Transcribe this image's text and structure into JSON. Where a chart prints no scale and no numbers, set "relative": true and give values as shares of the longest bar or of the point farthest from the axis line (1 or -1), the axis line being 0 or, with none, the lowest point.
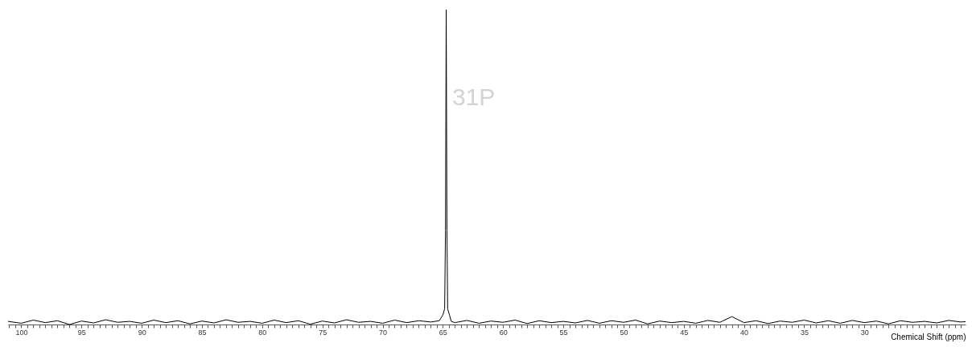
{
  "chart_data": {
    "type": "line",
    "relative": true,
    "xlabel": "Chemical Shift (ppm)",
    "annotations": [
      "31P"
    ],
    "tick_labels": "x",
    "grid": false,
    "xlim": [
      101.1,
      21.6
    ],
    "xticks": [
      100,
      95,
      90,
      85,
      80,
      75,
      70,
      65,
      60,
      55,
      50,
      45,
      40,
      35,
      30,
      {
        "value": 101,
        "label": null
      },
      {
        "value": 100.5,
        "label": null
      },
      {
        "value": 99.5,
        "label": null
      },
      {
        "value": 99,
        "label": null
      },
      {
        "value": 98.5,
        "label": null
      },
      {
        "value": 98,
        "label": null
      },
      {
        "value": 97.5,
        "label": null
      },
      {
        "value": 97,
        "label": null
      },
      {
        "value": 96.5,
        "label": null
      },
      {
        "value": 96,
        "label": null
      },
      {
        "value": 95.5,
        "label": null
      },
      {
        "value": 94.5,
        "label": null
      },
      {
        "value": 94,
        "label": null
      },
      {
        "value": 93.5,
        "label": null
      },
      {
        "value": 93,
        "label": null
      },
      {
        "value": 92.5,
        "label": null
      },
      {
        "value": 92,
        "label": null
      },
      {
        "value": 91.5,
        "label": null
      },
      {
        "value": 91,
        "label": null
      },
      {
        "value": 90.5,
        "label": null
      },
      {
        "value": 89.5,
        "label": null
      },
      {
        "value": 89,
        "label": null
      },
      {
        "value": 88.5,
        "label": null
      },
      {
        "value": 88,
        "label": null
      },
      {
        "value": 87.5,
        "label": null
      },
      {
        "value": 87,
        "label": null
      },
      {
        "value": 86.5,
        "label": null
      },
      {
        "value": 86,
        "label": null
      },
      {
        "value": 85.5,
        "label": null
      },
      {
        "value": 84.5,
        "label": null
      },
      {
        "value": 84,
        "label": null
      },
      {
        "value": 83.5,
        "label": null
      },
      {
        "value": 83,
        "label": null
      },
      {
        "value": 82.5,
        "label": null
      },
      {
        "value": 82,
        "label": null
      },
      {
        "value": 81.5,
        "label": null
      },
      {
        "value": 81,
        "label": null
      },
      {
        "value": 80.5,
        "label": null
      },
      {
        "value": 79.5,
        "label": null
      },
      {
        "value": 79,
        "label": null
      },
      {
        "value": 78.5,
        "label": null
      },
      {
        "value": 78,
        "label": null
      },
      {
        "value": 77.5,
        "label": null
      },
      {
        "value": 77,
        "label": null
      },
      {
        "value": 76.5,
        "label": null
      },
      {
        "value": 76,
        "label": null
      },
      {
        "value": 75.5,
        "label": null
      },
      {
        "value": 74.5,
        "label": null
      },
      {
        "value": 74,
        "label": null
      },
      {
        "value": 73.5,
        "label": null
      },
      {
        "value": 73,
        "label": null
      },
      {
        "value": 72.5,
        "label": null
      },
      {
        "value": 72,
        "label": null
      },
      {
        "value": 71.5,
        "label": null
      },
      {
        "value": 71,
        "label": null
      },
      {
        "value": 70.5,
        "label": null
      },
      {
        "value": 69.5,
        "label": null
      },
      {
        "value": 69,
        "label": null
      },
      {
        "value": 68.5,
        "label": null
      },
      {
        "value": 68,
        "label": null
      },
      {
        "value": 67.5,
        "label": null
      },
      {
        "value": 67,
        "label": null
      },
      {
        "value": 66.5,
        "label": null
      },
      {
        "value": 66,
        "label": null
      },
      {
        "value": 65.5,
        "label": null
      },
      {
        "value": 64.5,
        "label": null
      },
      {
        "value": 64,
        "label": null
      },
      {
        "value": 63.5,
        "label": null
      },
      {
        "value": 63,
        "label": null
      },
      {
        "value": 62.5,
        "label": null
      },
      {
        "value": 62,
        "label": null
      },
      {
        "value": 61.5,
        "label": null
      },
      {
        "value": 61,
        "label": null
      },
      {
        "value": 60.5,
        "label": null
      },
      {
        "value": 59.5,
        "label": null
      },
      {
        "value": 59,
        "label": null
      },
      {
        "value": 58.5,
        "label": null
      },
      {
        "value": 58,
        "label": null
      },
      {
        "value": 57.5,
        "label": null
      },
      {
        "value": 57,
        "label": null
      },
      {
        "value": 56.5,
        "label": null
      },
      {
        "value": 56,
        "label": null
      },
      {
        "value": 55.5,
        "label": null
      },
      {
        "value": 54.5,
        "label": null
      },
      {
        "value": 54,
        "label": null
      },
      {
        "value": 53.5,
        "label": null
      },
      {
        "value": 53,
        "label": null
      },
      {
        "value": 52.5,
        "label": null
      },
      {
        "value": 52,
        "label": null
      },
      {
        "value": 51.5,
        "label": null
      },
      {
        "value": 51,
        "label": null
      },
      {
        "value": 50.5,
        "label": null
      },
      {
        "value": 49.5,
        "label": null
      },
      {
        "value": 49,
        "label": null
      },
      {
        "value": 48.5,
        "label": null
      },
      {
        "value": 48,
        "label": null
      },
      {
        "value": 47.5,
        "label": null
      },
      {
        "value": 47,
        "label": null
      },
      {
        "value": 46.5,
        "label": null
      },
      {
        "value": 46,
        "label": null
      },
      {
        "value": 45.5,
        "label": null
      },
      {
        "value": 44.5,
        "label": null
      },
      {
        "value": 44,
        "label": null
      },
      {
        "value": 43.5,
        "label": null
      },
      {
        "value": 43,
        "label": null
      },
      {
        "value": 42.5,
        "label": null
      },
      {
        "value": 42,
        "label": null
      },
      {
        "value": 41.5,
        "label": null
      },
      {
        "value": 41,
        "label": null
      },
      {
        "value": 40.5,
        "label": null
      },
      {
        "value": 39.5,
        "label": null
      },
      {
        "value": 39,
        "label": null
      },
      {
        "value": 38.5,
        "label": null
      },
      {
        "value": 38,
        "label": null
      },
      {
        "value": 37.5,
        "label": null
      },
      {
        "value": 37,
        "label": null
      },
      {
        "value": 36.5,
        "label": null
      },
      {
        "value": 36,
        "label": null
      },
      {
        "value": 35.5,
        "label": null
      },
      {
        "value": 34.5,
        "label": null
      },
      {
        "value": 34,
        "label": null
      },
      {
        "value": 33.5,
        "label": null
      },
      {
        "value": 33,
        "label": null
      },
      {
        "value": 32.5,
        "label": null
      },
      {
        "value": 32,
        "label": null
      },
      {
        "value": 31.5,
        "label": null
      },
      {
        "value": 31,
        "label": null
      },
      {
        "value": 30.5,
        "label": null
      },
      {
        "value": 29.5,
        "label": null
      },
      {
        "value": 29,
        "label": null
      },
      {
        "value": 28.5,
        "label": null
      },
      {
        "value": 28,
        "label": null
      },
      {
        "value": 27.5,
        "label": null
      },
      {
        "value": 27,
        "label": null
      },
      {
        "value": 26.5,
        "label": null
      },
      {
        "value": 26,
        "label": null
      },
      {
        "value": 25.5,
        "label": null
      },
      {
        "value": 25,
        "label": null
      },
      {
        "value": 24.5,
        "label": null
      },
      {
        "value": 24,
        "label": null
      },
      {
        "value": 23.5,
        "label": null
      },
      {
        "value": 23,
        "label": null
      },
      {
        "value": 22.5,
        "label": null
      },
      {
        "value": 22,
        "label": null
      }
    ],
    "series": [
      {
        "color": "#000000",
        "x": [
          101.1,
          100,
          99,
          98,
          97,
          96,
          95,
          94,
          93,
          92,
          91,
          90,
          89,
          88,
          87,
          86,
          85,
          84,
          83,
          82,
          81,
          80,
          79,
          78,
          77,
          76,
          75,
          74,
          73,
          72,
          71,
          70,
          69,
          68,
          67,
          66,
          65.3,
          65.0,
          64.85,
          64.78,
          64.72,
          64.66,
          64.6,
          64.45,
          64.3,
          64,
          63,
          62,
          61,
          60,
          59,
          58,
          57,
          56,
          55,
          54,
          53,
          52,
          51,
          50,
          49,
          48,
          47,
          46,
          45,
          44,
          43,
          42,
          41,
          40,
          39,
          38,
          37,
          36,
          35,
          34,
          33,
          32,
          31,
          30,
          29,
          28,
          27,
          26,
          25,
          24,
          23,
          22,
          21.6
        ],
        "values": [
          0.01,
          0.004,
          0.014,
          0.006,
          0.012,
          0.0,
          0.011,
          0.005,
          0.015,
          0.007,
          0.01,
          0.004,
          0.014,
          0.006,
          0.012,
          0.002,
          0.011,
          0.005,
          0.015,
          0.007,
          0.01,
          0.004,
          0.014,
          0.006,
          0.012,
          0.001,
          0.011,
          0.005,
          0.015,
          0.007,
          0.01,
          0.004,
          0.014,
          0.006,
          0.012,
          0.008,
          0.012,
          0.03,
          0.05,
          0.3,
          1,
          0.3,
          0.05,
          0.03,
          0.01,
          0.006,
          0.013,
          0.004,
          0.011,
          0.007,
          0.014,
          0.003,
          0.012,
          0.006,
          0.01,
          0.005,
          0.013,
          0.004,
          0.012,
          0.007,
          0.014,
          0.002,
          0.011,
          0.006,
          0.01,
          0.004,
          0.013,
          0.007,
          0.025,
          0.006,
          0.012,
          0.003,
          0.011,
          0.007,
          0.014,
          0.005,
          0.012,
          0.004,
          0.013,
          0.006,
          0.011,
          0.002,
          0.012,
          0.007,
          0.01,
          0.005,
          0.013,
          0.008,
          0.009
        ]
      }
    ]
  }
}
